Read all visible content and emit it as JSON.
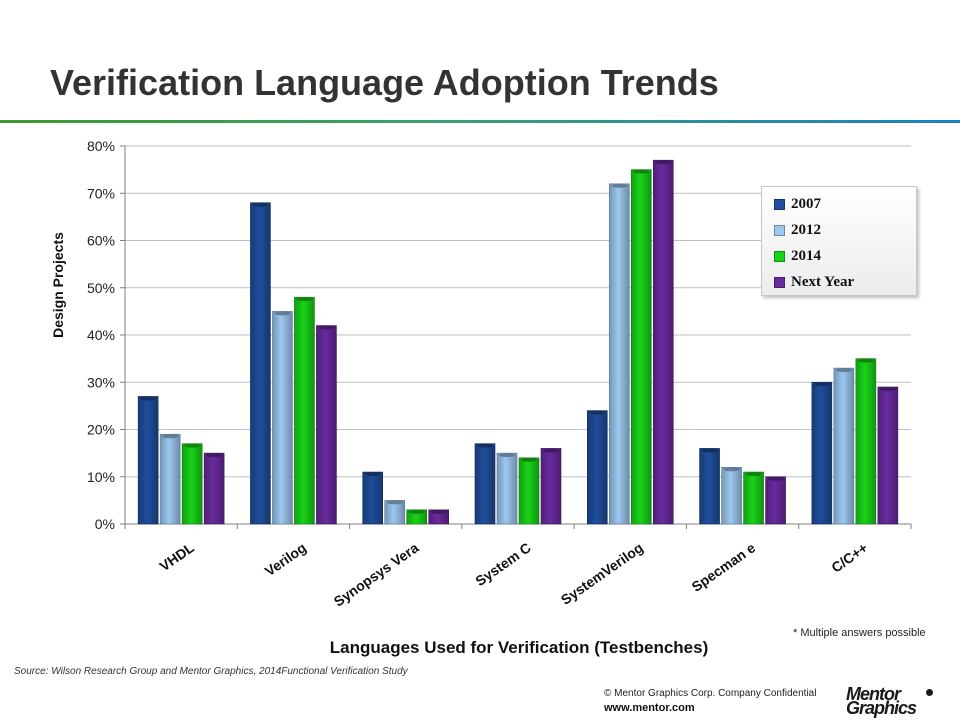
{
  "slide": {
    "title": "Verification Language Adoption Trends",
    "note": "* Multiple answers possible",
    "source": "Source:  Wilson Research Group and Mentor Graphics, 2014Functional Verification Study",
    "copyright": "© Mentor Graphics Corp.     Company Confidential",
    "website": "www.mentor.com",
    "logo_text": "Mentor Graphics"
  },
  "chart_data": {
    "type": "bar",
    "title": "",
    "xlabel": "Languages Used for Verification (Testbenches)",
    "ylabel": "Design Projects",
    "ylim": [
      0,
      80
    ],
    "ytick_step": 10,
    "ytick_format": "%",
    "grid": true,
    "legend_position": "top-right",
    "categories": [
      "VHDL",
      "Verilog",
      "Synopsys Vera",
      "System C",
      "SystemVerilog",
      "Specman e",
      "C/C++"
    ],
    "series": [
      {
        "name": "2007",
        "color": "#1f4e9c",
        "values": [
          27,
          68,
          11,
          17,
          24,
          16,
          30
        ]
      },
      {
        "name": "2012",
        "color": "#9cc8f0",
        "values": [
          19,
          45,
          5,
          15,
          72,
          12,
          33
        ]
      },
      {
        "name": "2014",
        "color": "#18d418",
        "values": [
          17,
          48,
          3,
          14,
          75,
          11,
          35
        ]
      },
      {
        "name": "Next Year",
        "color": "#6a2a9e",
        "values": [
          15,
          42,
          3,
          16,
          77,
          10,
          29
        ]
      }
    ]
  }
}
